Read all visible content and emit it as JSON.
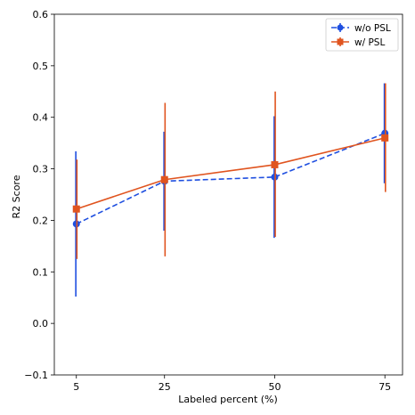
{
  "chart_data": {
    "type": "line",
    "title": "",
    "xlabel": "Labeled percent (%)",
    "ylabel": "R2 Score",
    "x": [
      5,
      25,
      50,
      75
    ],
    "x_tick_labels": [
      "5",
      "25",
      "50",
      "75"
    ],
    "xlim": [
      0,
      79
    ],
    "ylim": [
      -0.1,
      0.6
    ],
    "y_ticks": [
      -0.1,
      0.0,
      0.1,
      0.2,
      0.3,
      0.4,
      0.5,
      0.6
    ],
    "y_tick_labels": [
      "−0.1",
      "0.0",
      "0.1",
      "0.2",
      "0.3",
      "0.4",
      "0.5",
      "0.6"
    ],
    "grid": false,
    "legend_position": "top-right",
    "series": [
      {
        "name": "w/o PSL",
        "values": [
          0.193,
          0.276,
          0.284,
          0.369
        ],
        "err_low": [
          0.052,
          0.18,
          0.166,
          0.272
        ],
        "err_high": [
          0.334,
          0.372,
          0.402,
          0.466
        ],
        "color": "#1f4fe0",
        "line_style": "dashed",
        "marker": "circle"
      },
      {
        "name": "w/ PSL",
        "values": [
          0.222,
          0.279,
          0.308,
          0.36
        ],
        "err_low": [
          0.125,
          0.13,
          0.168,
          0.255
        ],
        "err_high": [
          0.318,
          0.428,
          0.45,
          0.466
        ],
        "color": "#e0541f",
        "line_style": "solid",
        "marker": "square"
      }
    ]
  }
}
